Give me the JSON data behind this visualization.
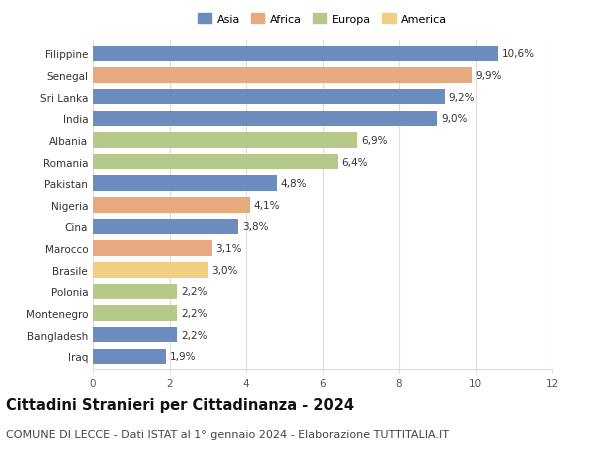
{
  "categories": [
    "Filippine",
    "Senegal",
    "Sri Lanka",
    "India",
    "Albania",
    "Romania",
    "Pakistan",
    "Nigeria",
    "Cina",
    "Marocco",
    "Brasile",
    "Polonia",
    "Montenegro",
    "Bangladesh",
    "Iraq"
  ],
  "values": [
    10.6,
    9.9,
    9.2,
    9.0,
    6.9,
    6.4,
    4.8,
    4.1,
    3.8,
    3.1,
    3.0,
    2.2,
    2.2,
    2.2,
    1.9
  ],
  "labels": [
    "10,6%",
    "9,9%",
    "9,2%",
    "9,0%",
    "6,9%",
    "6,4%",
    "4,8%",
    "4,1%",
    "3,8%",
    "3,1%",
    "3,0%",
    "2,2%",
    "2,2%",
    "2,2%",
    "1,9%"
  ],
  "continent": [
    "Asia",
    "Africa",
    "Asia",
    "Asia",
    "Europa",
    "Europa",
    "Asia",
    "Africa",
    "Asia",
    "Africa",
    "America",
    "Europa",
    "Europa",
    "Asia",
    "Asia"
  ],
  "colors": {
    "Asia": "#6b8cbf",
    "Africa": "#e8a97e",
    "Europa": "#b5c98a",
    "America": "#f0d080"
  },
  "xlim": [
    0,
    12
  ],
  "xticks": [
    0,
    2,
    4,
    6,
    8,
    10,
    12
  ],
  "title": "Cittadini Stranieri per Cittadinanza - 2024",
  "subtitle": "COMUNE DI LECCE - Dati ISTAT al 1° gennaio 2024 - Elaborazione TUTTITALIA.IT",
  "title_fontsize": 10.5,
  "subtitle_fontsize": 8,
  "label_fontsize": 7.5,
  "tick_fontsize": 7.5,
  "bg_color": "#ffffff",
  "grid_color": "#dddddd",
  "bar_height": 0.72
}
